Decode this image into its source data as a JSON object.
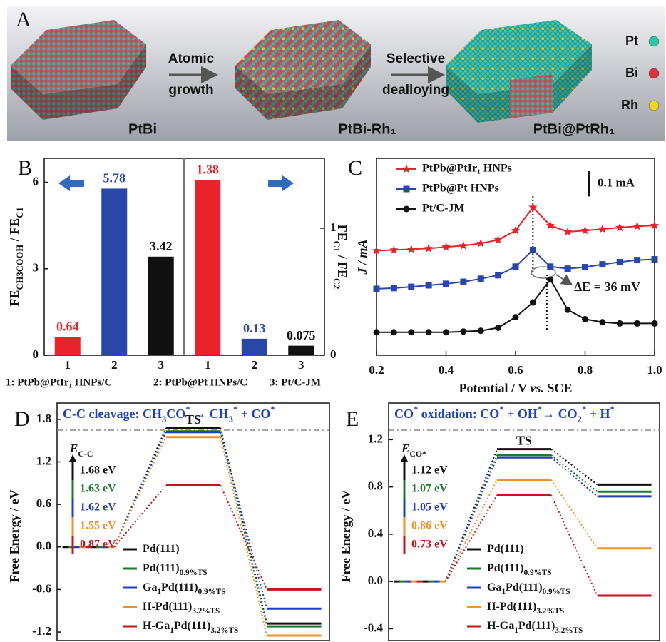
{
  "panel_a": {
    "label": "A",
    "steps": [
      {
        "lines": [
          "Atomic",
          "growth"
        ]
      },
      {
        "lines": [
          "Selective",
          "dealloying"
        ]
      }
    ],
    "products": [
      "PtBi",
      "PtBi-Rh₁",
      "PtBi@PtRh₁"
    ],
    "legend": [
      {
        "name": "Pt",
        "color": "#2ec4a6"
      },
      {
        "name": "Bi",
        "color": "#d9343a"
      },
      {
        "name": "Rh",
        "color": "#f2d12a"
      }
    ]
  },
  "chart_data": [
    {
      "type": "bar",
      "label": "B",
      "categories": [
        "1",
        "2",
        "3",
        "1",
        "2",
        "3"
      ],
      "series": [
        {
          "values": [
            0.64,
            5.78,
            3.42,
            null,
            null,
            null
          ],
          "axis": "y",
          "colors": [
            "#e8232b",
            "#2947a9",
            "#111111",
            "#e8232b",
            "#2947a9",
            "#111111"
          ]
        },
        {
          "values": [
            null,
            null,
            null,
            1.38,
            0.13,
            0.075
          ],
          "axis": "y2",
          "colors": [
            "#e8232b",
            "#2947a9",
            "#111111",
            "#e8232b",
            "#2947a9",
            "#111111"
          ]
        }
      ],
      "ylabel": [
        {
          "t": "FE"
        },
        {
          "t": "CH3COOH",
          "sub": true
        },
        {
          "t": " / FE"
        },
        {
          "t": "C1",
          "sub": true
        }
      ],
      "y2label": [
        {
          "t": "FE"
        },
        {
          "t": "C1",
          "sub": true
        },
        {
          "t": " / FE"
        },
        {
          "t": "C2",
          "sub": true
        }
      ],
      "ylim": [
        0,
        6.83
      ],
      "yticks": [
        0,
        3,
        6
      ],
      "y2lim": [
        0,
        1.55
      ],
      "y2ticks": [
        0,
        1
      ],
      "notes": [
        "1: PtPb@PtIr₁ HNPs/C",
        "2: PtPb@Pt HNPs/C",
        "3: Pt/C-JM"
      ]
    },
    {
      "type": "line",
      "label": "C",
      "x": [
        0.2,
        0.25,
        0.3,
        0.35,
        0.4,
        0.45,
        0.5,
        0.55,
        0.6,
        0.65,
        0.7,
        0.75,
        0.8,
        0.85,
        0.9,
        0.95,
        1.0
      ],
      "series": [
        {
          "name": "PtPb@PtIr₁ HNPs",
          "color": "#e8232b",
          "marker": "star",
          "values": [
            0.414,
            0.417,
            0.42,
            0.423,
            0.429,
            0.434,
            0.443,
            0.457,
            0.494,
            0.586,
            0.514,
            0.489,
            0.494,
            0.5,
            0.506,
            0.511,
            0.514
          ]
        },
        {
          "name": "PtPb@Pt HNPs",
          "color": "#2947a9",
          "marker": "square",
          "values": [
            0.263,
            0.266,
            0.271,
            0.277,
            0.283,
            0.291,
            0.303,
            0.317,
            0.351,
            0.417,
            0.351,
            0.343,
            0.349,
            0.36,
            0.369,
            0.377,
            0.38
          ]
        },
        {
          "name": "Pt/C-JM",
          "color": "#111111",
          "marker": "circle",
          "values": [
            0.091,
            0.091,
            0.091,
            0.091,
            0.091,
            0.094,
            0.097,
            0.109,
            0.151,
            0.209,
            0.3,
            0.18,
            0.143,
            0.131,
            0.126,
            0.126,
            0.126
          ]
        }
      ],
      "xlabel": [
        {
          "t": "Potential / V "
        },
        {
          "t": "vs.",
          "i": true
        },
        {
          "t": " SCE"
        }
      ],
      "ylabel": "J / mA",
      "xlim": [
        0.2,
        1.0
      ],
      "xticks": [
        0.2,
        0.4,
        0.6,
        0.8,
        {
          "value": 1.0,
          "label": "1.0"
        }
      ],
      "ylim": [
        0,
        0.78
      ],
      "vlines": [
        0.65,
        0.69
      ],
      "scale_bar": {
        "value": 0.1,
        "label": "0.1 mA"
      },
      "annotation": "ΔE = 36 mV"
    },
    {
      "type": "energy",
      "label": "D",
      "title": [
        {
          "t": "C-C cleavage: "
        },
        {
          "t": "CH"
        },
        {
          "t": "3",
          "sub": true
        },
        {
          "t": "CO"
        },
        {
          "t": "*",
          "sup": true
        },
        {
          "t": " → CH"
        },
        {
          "t": "3",
          "sub": true
        },
        {
          "t": "*",
          "sup": true
        },
        {
          "t": " + CO"
        },
        {
          "t": "*",
          "sup": true
        }
      ],
      "ylabel": "Free Energy / eV",
      "ts_label": "TS",
      "energy_label": [
        {
          "t": "E",
          "i": true
        },
        {
          "t": "C-C",
          "sub": true
        }
      ],
      "ylim": [
        -1.32,
        2.03
      ],
      "yticks": [
        1.8,
        1.2,
        0.6,
        {
          "value": 0,
          "label": "0.0"
        },
        -0.6,
        -1.2
      ],
      "series": [
        {
          "name": [
            {
              "t": "Pd(111)"
            }
          ],
          "color": "#111111",
          "values": [
            0,
            1.68,
            -1.08
          ],
          "value_labels": [
            null,
            "1.68 eV",
            null
          ]
        },
        {
          "name": [
            {
              "t": "Pd(111)"
            },
            {
              "t": "0.9%TS",
              "sub": true
            }
          ],
          "color": "#1e7a2a",
          "values": [
            0,
            1.63,
            -1.12
          ],
          "value_labels": [
            null,
            "1.63 eV",
            null
          ]
        },
        {
          "name": [
            {
              "t": "Ga"
            },
            {
              "t": "1",
              "sub": true
            },
            {
              "t": "Pd(111)"
            },
            {
              "t": "0.9%TS",
              "sub": true
            }
          ],
          "color": "#1f3fbf",
          "values": [
            0,
            1.62,
            -0.87
          ],
          "value_labels": [
            null,
            "1.62 eV",
            null
          ]
        },
        {
          "name": [
            {
              "t": "H-Pd(111)"
            },
            {
              "t": "3.2%TS",
              "sub": true
            }
          ],
          "color": "#f0922a",
          "values": [
            0,
            1.55,
            -1.25
          ],
          "value_labels": [
            null,
            "1.55 eV",
            null
          ]
        },
        {
          "name": [
            {
              "t": "H-Ga"
            },
            {
              "t": "1",
              "sub": true
            },
            {
              "t": "Pd(111)"
            },
            {
              "t": "3.2%TS",
              "sub": true
            }
          ],
          "color": "#c0161d",
          "values": [
            0,
            0.87,
            -0.6
          ],
          "value_labels": [
            null,
            "0.87 eV",
            null
          ]
        }
      ]
    },
    {
      "type": "energy",
      "label": "E",
      "title": [
        {
          "t": "CO"
        },
        {
          "t": "*",
          "sup": true
        },
        {
          "t": " oxidation: CO"
        },
        {
          "t": "*",
          "sup": true
        },
        {
          "t": " + OH"
        },
        {
          "t": "*",
          "sup": true
        },
        {
          "t": "→ CO"
        },
        {
          "t": "2",
          "sub": true
        },
        {
          "t": "*",
          "sup": true
        },
        {
          "t": " + H"
        },
        {
          "t": "*",
          "sup": true
        }
      ],
      "ylabel": "Free Energy / eV",
      "ts_label": "TS",
      "energy_label": [
        {
          "t": "E",
          "i": true
        },
        {
          "t": "CO*",
          "sub": true
        }
      ],
      "ylim": [
        -0.5,
        1.51
      ],
      "yticks": [
        1.2,
        0.8,
        0.4,
        {
          "value": 0,
          "label": "0.0"
        },
        -0.4
      ],
      "series": [
        {
          "name": [
            {
              "t": "Pd(111)"
            }
          ],
          "color": "#111111",
          "values": [
            0,
            1.12,
            0.82
          ],
          "value_labels": [
            null,
            "1.12 eV",
            null
          ]
        },
        {
          "name": [
            {
              "t": "Pd(111)"
            },
            {
              "t": "0.9%TS",
              "sub": true
            }
          ],
          "color": "#1e7a2a",
          "values": [
            0,
            1.07,
            0.76
          ],
          "value_labels": [
            null,
            "1.07 eV",
            null
          ]
        },
        {
          "name": [
            {
              "t": "Ga"
            },
            {
              "t": "1",
              "sub": true
            },
            {
              "t": "Pd(111)"
            },
            {
              "t": "0.9%TS",
              "sub": true
            }
          ],
          "color": "#1f3fbf",
          "values": [
            0,
            1.05,
            0.72
          ],
          "value_labels": [
            null,
            "1.05 eV",
            null
          ]
        },
        {
          "name": [
            {
              "t": "H-Pd(111)"
            },
            {
              "t": "3.2%TS",
              "sub": true
            }
          ],
          "color": "#f0922a",
          "values": [
            0,
            0.86,
            0.28
          ],
          "value_labels": [
            null,
            "0.86 eV",
            null
          ]
        },
        {
          "name": [
            {
              "t": "H-Ga"
            },
            {
              "t": "1",
              "sub": true
            },
            {
              "t": "Pd(111)"
            },
            {
              "t": "3.2%TS",
              "sub": true
            }
          ],
          "color": "#c0161d",
          "values": [
            0,
            0.73,
            -0.12
          ],
          "value_labels": [
            null,
            "0.73 eV",
            null
          ]
        }
      ]
    }
  ]
}
